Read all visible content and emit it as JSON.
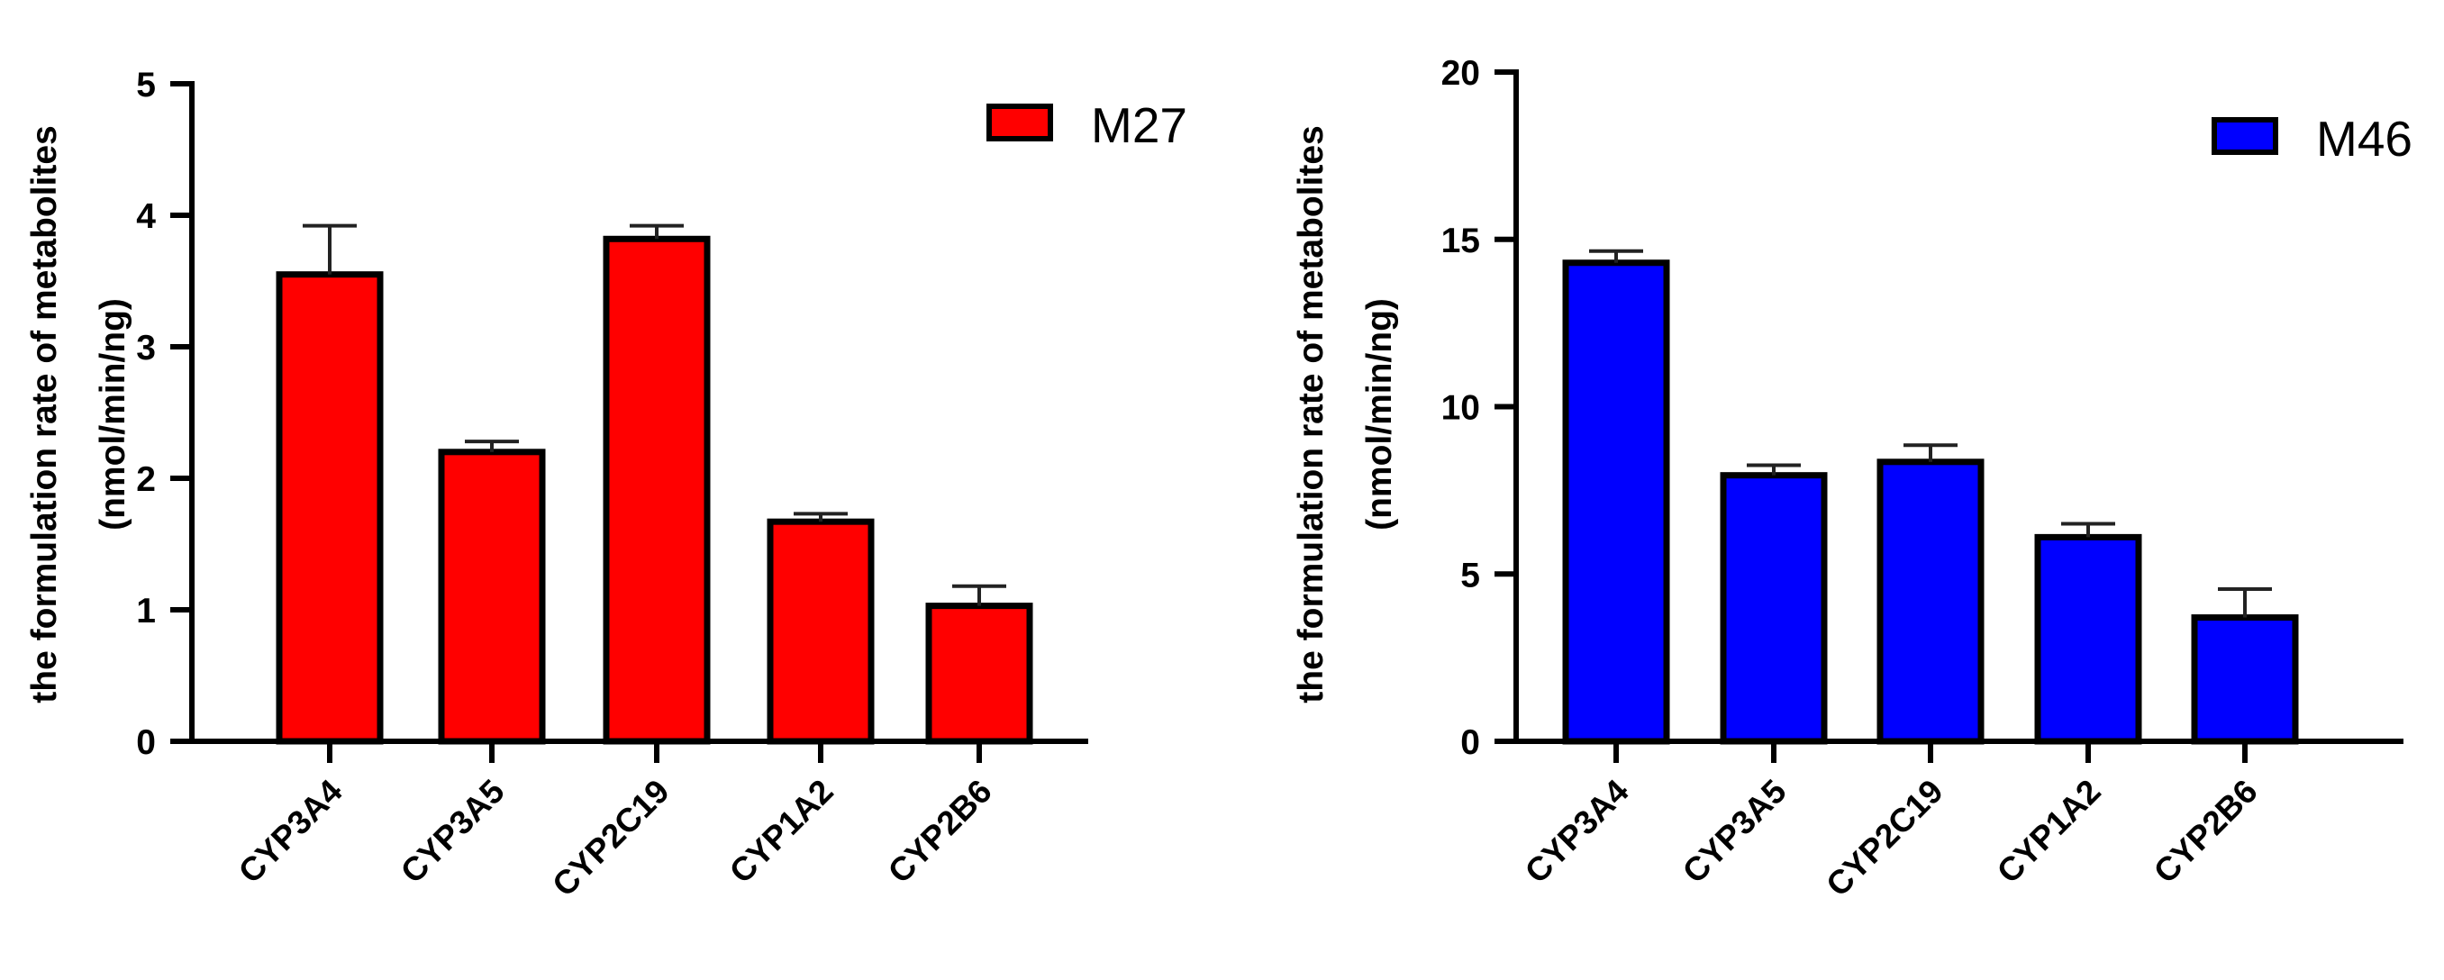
{
  "chart_data": [
    {
      "type": "bar",
      "categories": [
        "CYP3A4",
        "CYP3A5",
        "CYP2C19",
        "CYP1A2",
        "CYP2B6"
      ],
      "series": [
        {
          "name": "M27",
          "values": [
            3.55,
            2.2,
            3.82,
            1.67,
            1.03
          ],
          "errors": [
            0.37,
            0.08,
            0.1,
            0.06,
            0.15
          ],
          "color": "#ff0000"
        }
      ],
      "ylabel_line1": "the formulation rate of metabolites",
      "ylabel_line2": "(nmol/min/ng)",
      "ylim": [
        0,
        5
      ],
      "yticks": [
        "0",
        "1",
        "2",
        "3",
        "4",
        "5"
      ],
      "legend_position": "top-right",
      "grid": false
    },
    {
      "type": "bar",
      "categories": [
        "CYP3A4",
        "CYP3A5",
        "CYP2C19",
        "CYP1A2",
        "CYP2B6"
      ],
      "series": [
        {
          "name": "M46",
          "values": [
            14.3,
            7.95,
            8.35,
            6.1,
            3.7
          ],
          "errors": [
            0.35,
            0.3,
            0.5,
            0.4,
            0.85
          ],
          "color": "#0000ff"
        }
      ],
      "ylabel_line1": "the formulation rate of metabolites",
      "ylabel_line2": "(nmol/min/ng)",
      "ylim": [
        0,
        20
      ],
      "yticks": [
        "0",
        "5",
        "10",
        "15",
        "20"
      ],
      "legend_position": "top-right",
      "grid": false
    }
  ]
}
